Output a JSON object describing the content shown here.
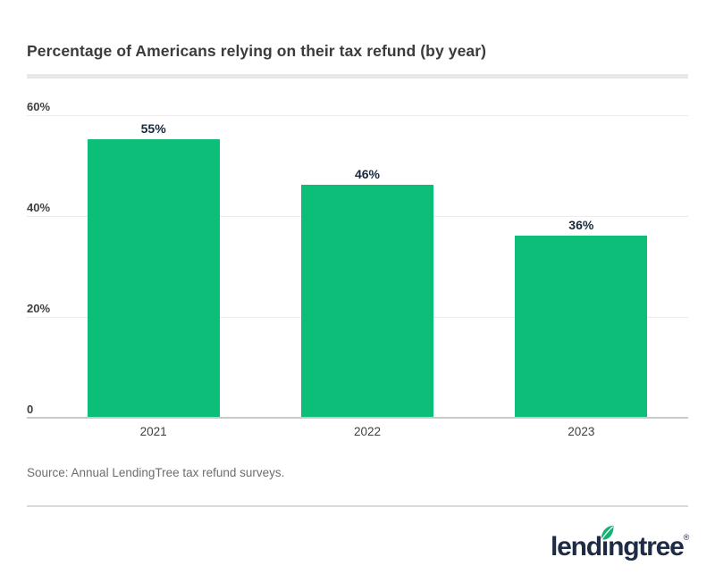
{
  "header": {
    "title": "Percentage of Americans relying on their tax refund (by year)"
  },
  "chart_data": {
    "type": "bar",
    "title": "Percentage of Americans relying on their tax refund (by year)",
    "categories": [
      "2021",
      "2022",
      "2023"
    ],
    "values": [
      55,
      46,
      36
    ],
    "value_labels": [
      "55%",
      "46%",
      "36%"
    ],
    "yticks": [
      {
        "label": "60%",
        "value": 60
      },
      {
        "label": "40%",
        "value": 40
      },
      {
        "label": "20%",
        "value": 20
      },
      {
        "label": "0",
        "value": 0
      }
    ],
    "ylim": [
      0,
      60
    ],
    "xlabel": "",
    "ylabel": "",
    "grid": true,
    "legend": false,
    "bar_color": "#0dbe78",
    "value_label_color": "#18293e"
  },
  "source": {
    "text": "Source: Annual LendingTree tax refund surveys."
  },
  "footer": {
    "logo": {
      "part1": "lend",
      "i": "ı",
      "part2": "ngtree",
      "reg": "®",
      "wordmark_color": "#1e2b45",
      "leaf_color": "#15b172"
    }
  }
}
